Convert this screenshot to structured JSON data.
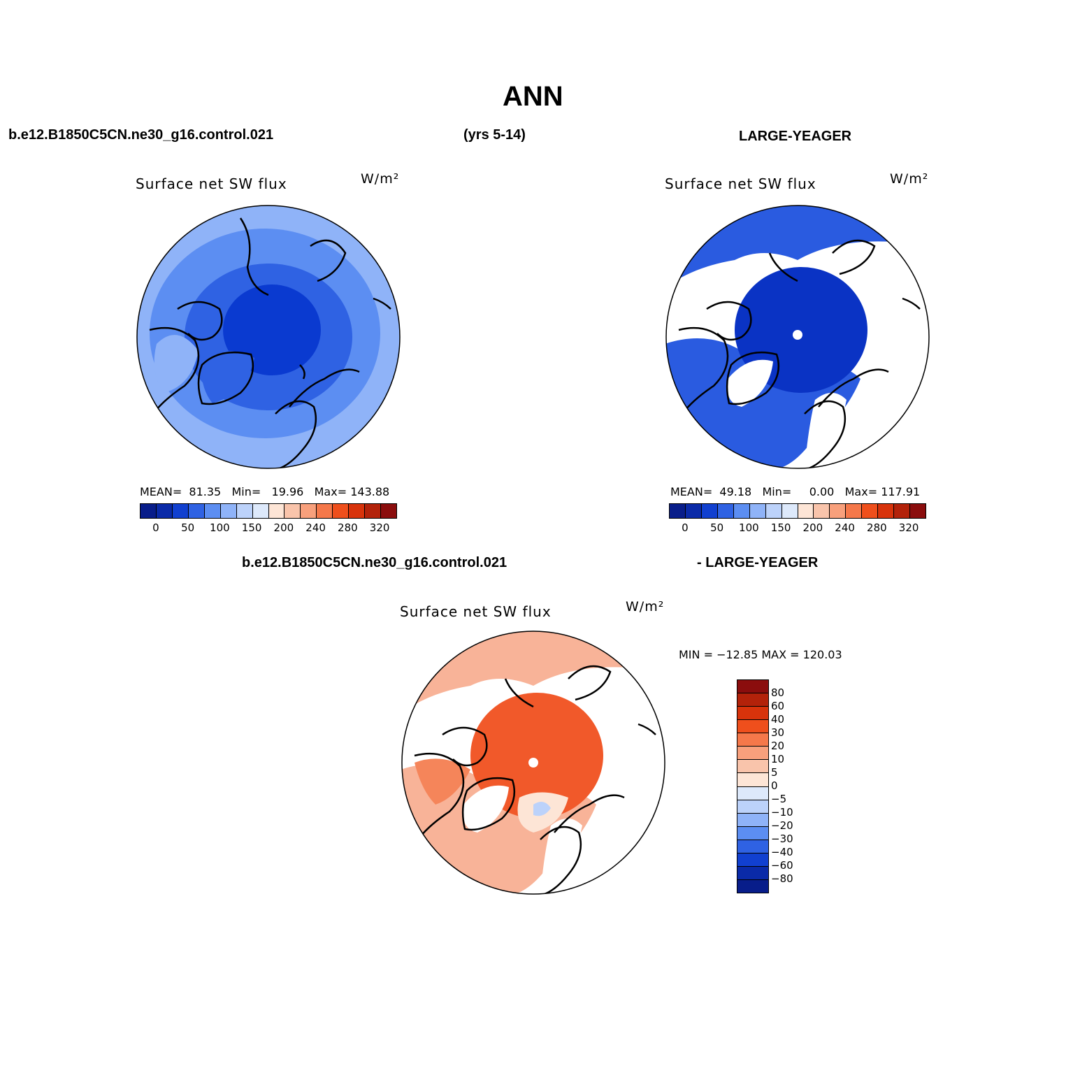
{
  "figure_title": "ANN",
  "header": {
    "left": "b.e12.B1850C5CN.ne30_g16.control.021",
    "center": "(yrs 5-14)",
    "right": "LARGE-YEAGER"
  },
  "diff_header": {
    "left": "b.e12.B1850C5CN.ne30_g16.control.021",
    "right": "- LARGE-YEAGER"
  },
  "panels": [
    {
      "title": "Surface net SW flux",
      "units": "W/m²",
      "stats": {
        "mean_label": "MEAN=",
        "mean": "81.35",
        "min_label": "Min=",
        "min": "19.96",
        "max_label": "Max=",
        "max": "143.88"
      },
      "colors": {
        "outer": "#8fb3f8",
        "mid": "#5c8ef2",
        "inner": "#2f62e3",
        "center": "#0a3ad0"
      }
    },
    {
      "title": "Surface net SW flux",
      "units": "W/m²",
      "stats": {
        "mean_label": "MEAN=",
        "mean": "49.18",
        "min_label": "Min=",
        "min": "0.00",
        "max_label": "Max=",
        "max": "117.91"
      },
      "colors": {
        "outer": "#2a5be0",
        "mid": "#2a5be0",
        "inner": "#0a33c4",
        "center": "#0a33c4"
      }
    },
    {
      "title": "Surface net SW flux",
      "units": "W/m²",
      "stats_text": "MIN = −12.85 MAX = 120.03",
      "colors": {
        "outer": "#f8b398",
        "mid": "#f5855a",
        "inner": "#f1592a",
        "center": "#f1592a"
      }
    }
  ],
  "colorbar_main": {
    "colors": [
      "#081d8a",
      "#0a2aa8",
      "#1140d0",
      "#2f62e3",
      "#5c8ef2",
      "#8fb3f8",
      "#bcd2fa",
      "#dde9fb",
      "#fde5d6",
      "#f9c4ab",
      "#f8a07c",
      "#f5784a",
      "#ef4f1c",
      "#d8330b",
      "#b3220a",
      "#8b0d0d"
    ],
    "labels": [
      "0",
      "50",
      "100",
      "150",
      "200",
      "240",
      "280",
      "320"
    ]
  },
  "colorbar_diff": {
    "colors": [
      "#8b0d0d",
      "#b3220a",
      "#d8330b",
      "#ef4f1c",
      "#f5784a",
      "#f8a07c",
      "#f9c4ab",
      "#fde5d6",
      "#dde9fb",
      "#bcd2fa",
      "#8fb3f8",
      "#5c8ef2",
      "#2f62e3",
      "#1140d0",
      "#0a2aa8",
      "#081d8a"
    ],
    "labels": [
      "80",
      "60",
      "40",
      "30",
      "20",
      "10",
      "5",
      "0",
      "−5",
      "−10",
      "−20",
      "−30",
      "−40",
      "−60",
      "−80"
    ]
  }
}
